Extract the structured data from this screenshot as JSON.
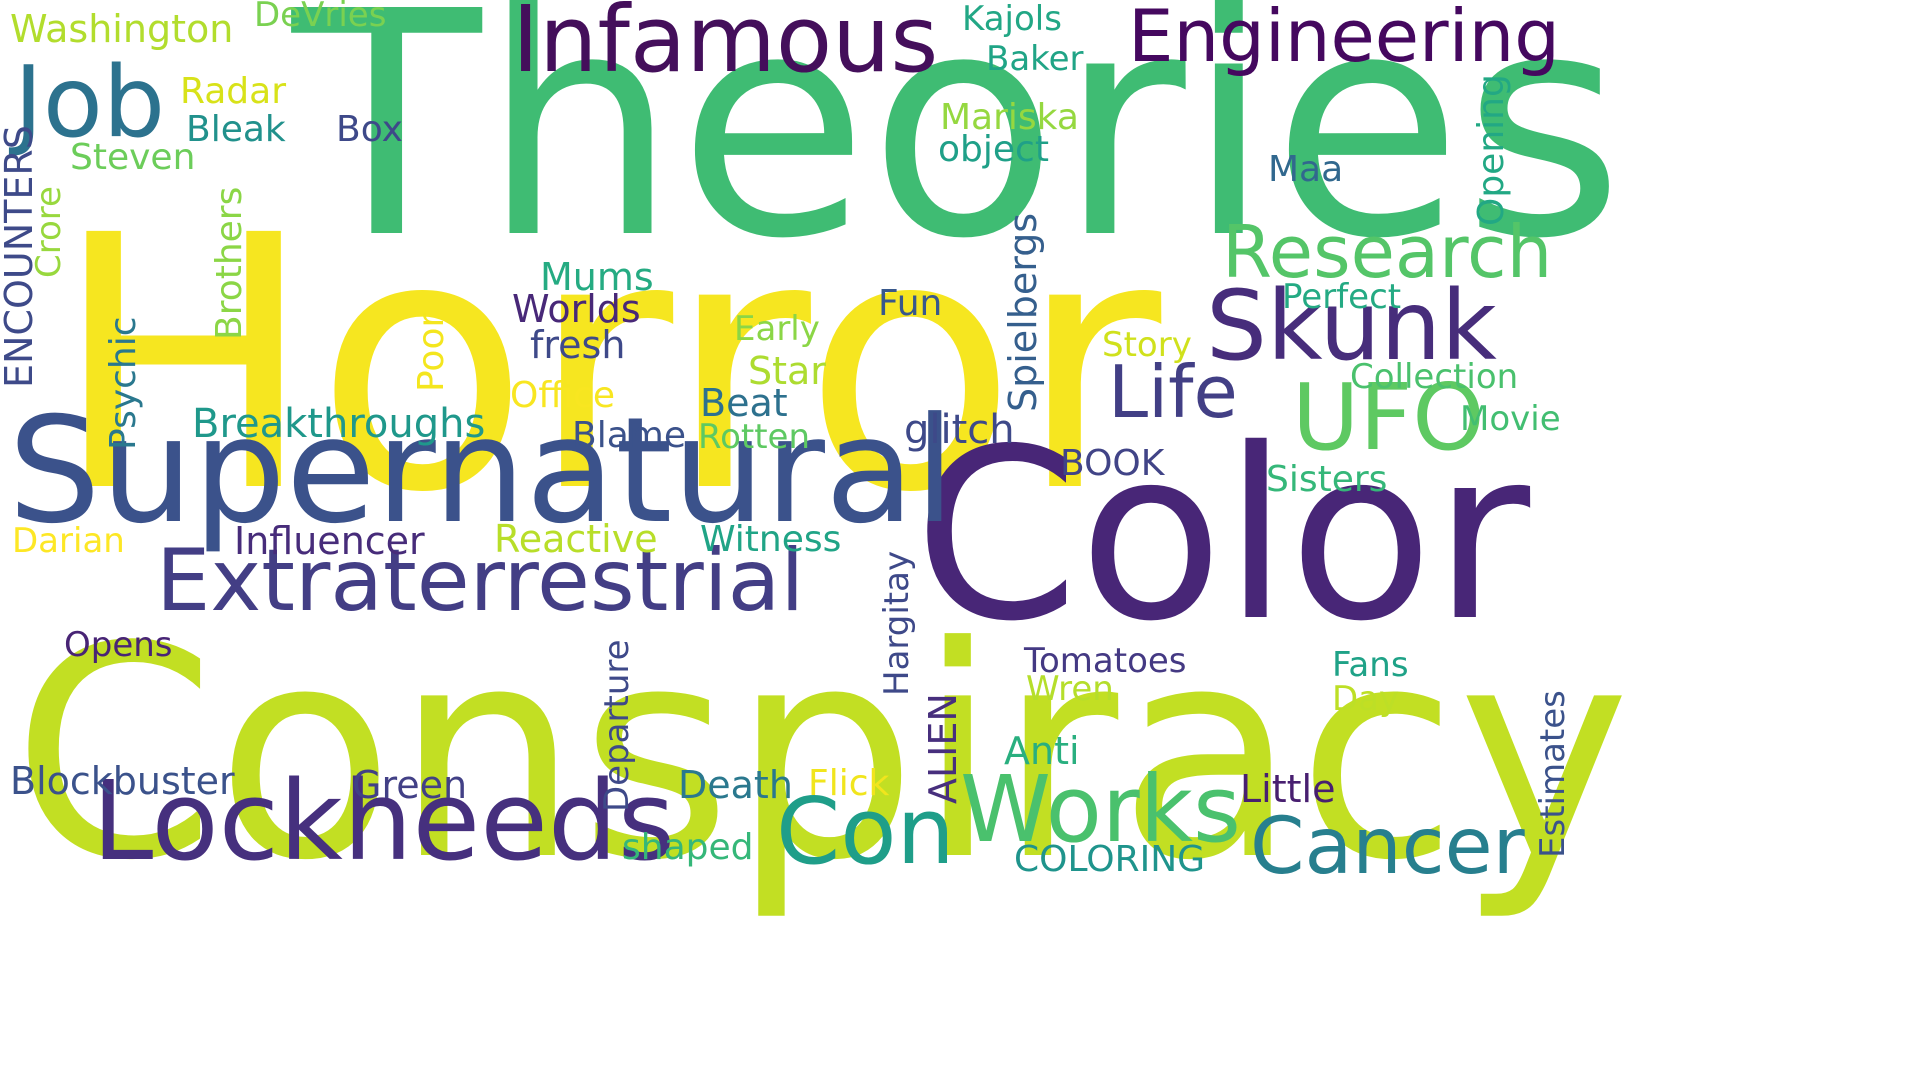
{
  "colors": {
    "purple": "#440154",
    "indigo": "#482878",
    "slate": "#3b528b",
    "steel": "#31688e",
    "teal": "#26828e",
    "sea": "#1f9e89",
    "jade": "#35b779",
    "green": "#6ece58",
    "lime": "#b5de2b",
    "yellow": "#fde725"
  },
  "words": [
    {
      "text": "Theories",
      "color": "#3fbc73"
    },
    {
      "text": "Horror",
      "color": "#f6e620"
    },
    {
      "text": "Conspiracy",
      "color": "#c2df23"
    },
    {
      "text": "Color",
      "color": "#482677"
    },
    {
      "text": "Supernatural",
      "color": "#3b528b"
    },
    {
      "text": "Extraterrestrial",
      "color": "#433e85"
    },
    {
      "text": "Lockheeds",
      "color": "#46307e"
    },
    {
      "text": "Infamous",
      "color": "#440f5b"
    },
    {
      "text": "Engineering",
      "color": "#45085f"
    },
    {
      "text": "Job",
      "color": "#2c728e"
    },
    {
      "text": "Research",
      "color": "#54c568"
    },
    {
      "text": "Skunk",
      "color": "#472d7b"
    },
    {
      "text": "UFO",
      "color": "#5ec962"
    },
    {
      "text": "Life",
      "color": "#423f85"
    },
    {
      "text": "Works",
      "color": "#4ac16d"
    },
    {
      "text": "Con",
      "color": "#1f9e89"
    },
    {
      "text": "Cancer",
      "color": "#277f8e"
    },
    {
      "text": "Washington",
      "color": "#b2dd2d"
    },
    {
      "text": "DeVries",
      "color": "#7ad151"
    },
    {
      "text": "Kajols",
      "color": "#22a785"
    },
    {
      "text": "Baker",
      "color": "#20a486"
    },
    {
      "text": "Radar",
      "color": "#d8e219"
    },
    {
      "text": "Bleak",
      "color": "#21918c"
    },
    {
      "text": "Box",
      "color": "#3e4989"
    },
    {
      "text": "Steven",
      "color": "#6ccd5a"
    },
    {
      "text": "Mariska",
      "color": "#95d840"
    },
    {
      "text": "object",
      "color": "#1fa088"
    },
    {
      "text": "Maa",
      "color": "#31688e"
    },
    {
      "text": "Mums",
      "color": "#25ab82"
    },
    {
      "text": "Worlds",
      "color": "#482878"
    },
    {
      "text": "fresh",
      "color": "#3e4989"
    },
    {
      "text": "Fun",
      "color": "#38588c"
    },
    {
      "text": "Perfect",
      "color": "#24aa83"
    },
    {
      "text": "Early",
      "color": "#8bd646"
    },
    {
      "text": "Story",
      "color": "#d0e11c"
    },
    {
      "text": "Star",
      "color": "#addc30"
    },
    {
      "text": "Collection",
      "color": "#4ac16d"
    },
    {
      "text": "Office",
      "color": "#f8e621"
    },
    {
      "text": "Beat",
      "color": "#2d718e"
    },
    {
      "text": "Movie",
      "color": "#42be71"
    },
    {
      "text": "Breakthroughs",
      "color": "#1f988b"
    },
    {
      "text": "Blame",
      "color": "#3b528b"
    },
    {
      "text": "Rotten",
      "color": "#5ec962"
    },
    {
      "text": "glitch",
      "color": "#3e4989"
    },
    {
      "text": "BOOK",
      "color": "#414487"
    },
    {
      "text": "Sisters",
      "color": "#35b779"
    },
    {
      "text": "Darian",
      "color": "#fde725"
    },
    {
      "text": "Influencer",
      "color": "#472c7a"
    },
    {
      "text": "Reactive",
      "color": "#b8de29"
    },
    {
      "text": "Witness",
      "color": "#20a486"
    },
    {
      "text": "Opens",
      "color": "#482475"
    },
    {
      "text": "Tomatoes",
      "color": "#443983"
    },
    {
      "text": "Wren",
      "color": "#b5de2b"
    },
    {
      "text": "Fans",
      "color": "#1fa287"
    },
    {
      "text": "Day",
      "color": "#bddf26"
    },
    {
      "text": "Anti",
      "color": "#29af7f"
    },
    {
      "text": "Blockbuster",
      "color": "#3b528b"
    },
    {
      "text": "Green",
      "color": "#424086"
    },
    {
      "text": "Death",
      "color": "#2a788e"
    },
    {
      "text": "Flick",
      "color": "#f1e51d"
    },
    {
      "text": "Little",
      "color": "#481f70"
    },
    {
      "text": "shaped",
      "color": "#35b779"
    },
    {
      "text": "COLORING",
      "color": "#1f948c"
    },
    {
      "text": "ENCOUNTERS",
      "color": "#3e4a89"
    },
    {
      "text": "Crore",
      "color": "#98d83e"
    },
    {
      "text": "Brothers",
      "color": "#8bd646"
    },
    {
      "text": "Psychic",
      "color": "#2a788e"
    },
    {
      "text": "Poor",
      "color": "#f4e61e"
    },
    {
      "text": "Spielbergs",
      "color": "#355f8d"
    },
    {
      "text": "Opening",
      "color": "#22a884"
    },
    {
      "text": "Hargitay",
      "color": "#3e4989"
    },
    {
      "text": "Departure",
      "color": "#3e4989"
    },
    {
      "text": "ALIEN",
      "color": "#472f7d"
    },
    {
      "text": "Estimates",
      "color": "#3b528b"
    }
  ]
}
